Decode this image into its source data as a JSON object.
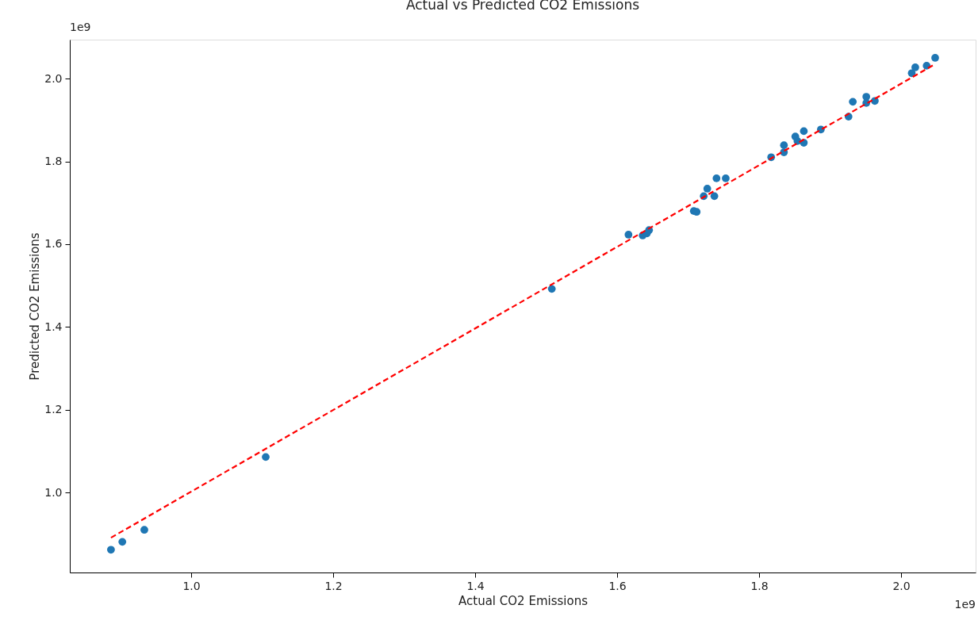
{
  "chart_data": {
    "type": "scatter",
    "title": "Actual vs Predicted CO2 Emissions",
    "xlabel": "Actual CO2 Emissions",
    "ylabel": "Predicted CO2 Emissions",
    "annotations": [
      "1e9",
      "1e9"
    ],
    "xlim": [
      0.829,
      2.105
    ],
    "ylim": [
      0.807,
      2.094
    ],
    "xticks": [
      {
        "value": 1.0,
        "label": "1.0"
      },
      {
        "value": 1.2,
        "label": "1.2"
      },
      {
        "value": 1.4,
        "label": "1.4"
      },
      {
        "value": 1.6,
        "label": "1.6"
      },
      {
        "value": 1.8,
        "label": "1.8"
      },
      {
        "value": 2.0,
        "label": "2.0"
      }
    ],
    "yticks": [
      {
        "value": 1.0,
        "label": "1.0"
      },
      {
        "value": 1.2,
        "label": "1.2"
      },
      {
        "value": 1.4,
        "label": "1.4"
      },
      {
        "value": 1.6,
        "label": "1.6"
      },
      {
        "value": 1.8,
        "label": "1.8"
      },
      {
        "value": 2.0,
        "label": "2.0"
      }
    ],
    "grid": false,
    "legend": false,
    "marker": "circle",
    "series": [
      {
        "color": "#1f77b4",
        "x": [
          0.887,
          0.903,
          0.934,
          1.105,
          1.508,
          1.616,
          1.636,
          1.645,
          1.642,
          1.708,
          1.712,
          1.727,
          1.722,
          1.737,
          1.74,
          1.753,
          1.817,
          1.835,
          1.835,
          1.851,
          1.854,
          1.863,
          1.863,
          1.887,
          1.926,
          1.932,
          1.951,
          1.951,
          1.963,
          2.015,
          2.02,
          2.036,
          2.048
        ],
        "values": [
          0.862,
          0.881,
          0.91,
          1.086,
          1.492,
          1.623,
          1.621,
          1.634,
          1.626,
          1.68,
          1.678,
          1.734,
          1.716,
          1.716,
          1.759,
          1.759,
          1.81,
          1.822,
          1.839,
          1.86,
          1.849,
          1.845,
          1.873,
          1.877,
          1.908,
          1.944,
          1.956,
          1.941,
          1.946,
          2.013,
          2.027,
          2.031,
          2.05
        ]
      },
      {
        "type": "line",
        "color": "#ff0000",
        "line_style": "dashed",
        "marker": "none",
        "x": [
          0.887,
          2.048
        ],
        "values": [
          0.891,
          2.035
        ]
      }
    ]
  }
}
